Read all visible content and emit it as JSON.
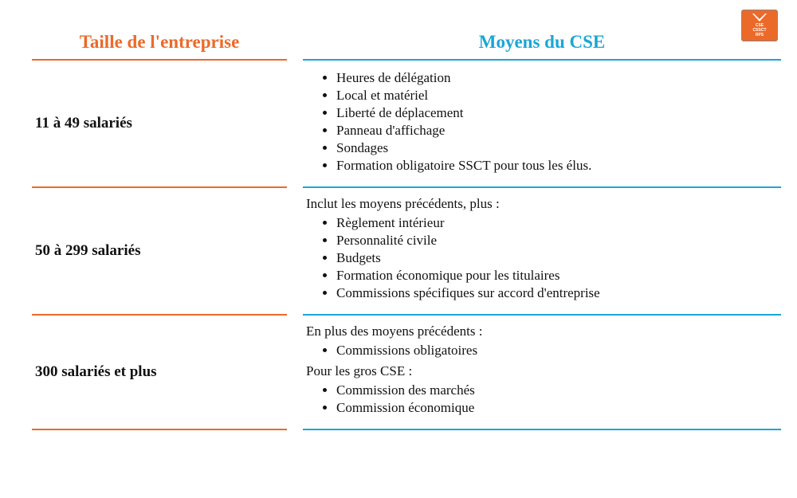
{
  "colors": {
    "left_accent": "#eb6a2a",
    "right_accent": "#1ba6d6",
    "text": "#111111",
    "background": "#ffffff"
  },
  "logo": {
    "lines": [
      "CSE",
      "CSSCT",
      "RPS"
    ]
  },
  "headers": {
    "left": "Taille de l'entreprise",
    "right": "Moyens du CSE"
  },
  "rows": [
    {
      "size": "11 à 49 salariés",
      "blocks": [
        {
          "intro": "",
          "items": [
            "Heures de délégation",
            "Local et matériel",
            "Liberté de déplacement",
            "Panneau d'affichage",
            "Sondages",
            "Formation obligatoire SSCT pour tous les élus."
          ]
        }
      ]
    },
    {
      "size": "50 à 299 salariés",
      "blocks": [
        {
          "intro": "Inclut les moyens précédents, plus :",
          "items": [
            "Règlement intérieur",
            "Personnalité civile",
            "Budgets",
            "Formation économique pour les titulaires",
            "Commissions spécifiques sur accord d'entreprise"
          ]
        }
      ]
    },
    {
      "size": "300 salariés et plus",
      "blocks": [
        {
          "intro": "En plus des moyens précédents :",
          "items": [
            "Commissions obligatoires"
          ]
        },
        {
          "intro": "Pour les gros CSE :",
          "items": [
            "Commission des marchés",
            "Commission économique"
          ]
        }
      ]
    }
  ]
}
